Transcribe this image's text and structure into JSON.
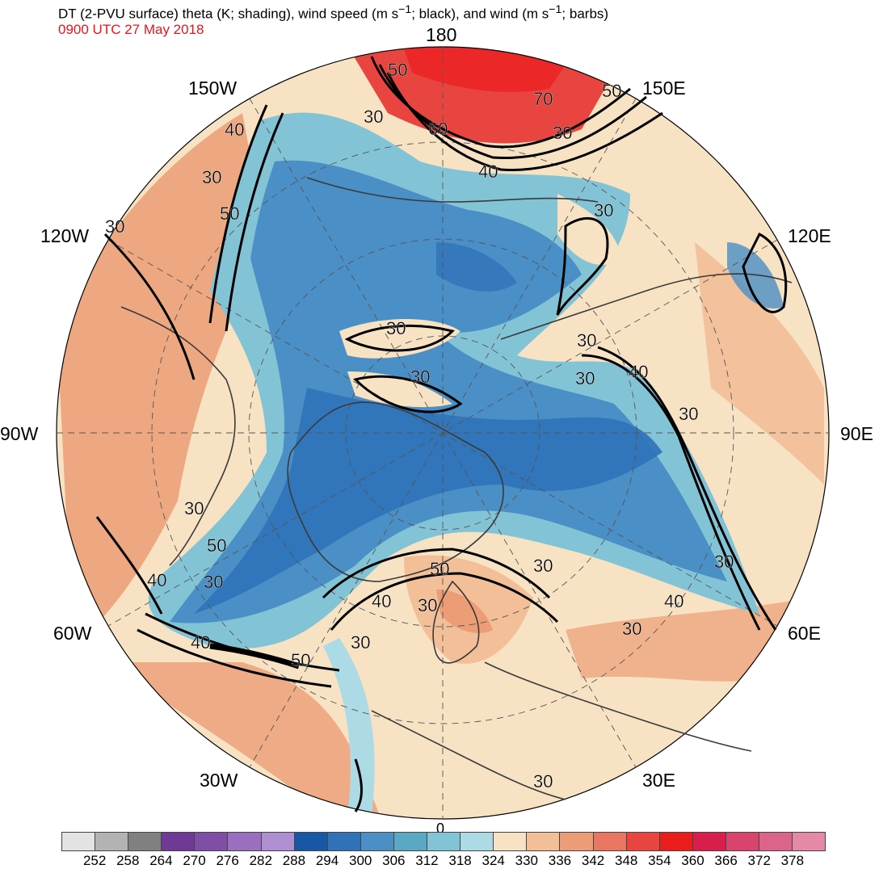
{
  "title_line1": "DT (2-PVU surface) theta (K; shading), wind speed (m s",
  "title_sup1": "−1",
  "title_line2": "; black), and wind (m s",
  "title_sup2": "−1",
  "title_line3": "; barbs)",
  "valid_time": "0900 UTC 27 May 2018",
  "longitude_labels": {
    "n180": "180",
    "w150": "150W",
    "e150": "150E",
    "w120": "120W",
    "e120": "120E",
    "w90": "90W",
    "e90": "90E",
    "w60": "60W",
    "e60": "60E",
    "w30": "30W",
    "e30": "30E",
    "s0": "0"
  },
  "contour_labels": [
    "50",
    "30",
    "60",
    "70",
    "50",
    "30",
    "40",
    "40",
    "30",
    "50",
    "30",
    "30",
    "30",
    "30",
    "30",
    "40",
    "30",
    "30",
    "30",
    "50",
    "40",
    "30",
    "50",
    "40",
    "30",
    "30",
    "40",
    "50",
    "40",
    "30",
    "30",
    "30",
    "30"
  ],
  "colorbar": {
    "colors": [
      "#e3e3e3",
      "#b3b3b3",
      "#808080",
      "#6e3a96",
      "#7f4fa8",
      "#9a6fc0",
      "#ae8fd2",
      "#1658a5",
      "#2f72b8",
      "#4a8fc6",
      "#5aa8c4",
      "#83c3d6",
      "#acdbe6",
      "#f7e2c3",
      "#f2bf98",
      "#ec9d76",
      "#e87660",
      "#e94540",
      "#eb1c1c",
      "#d81e4a",
      "#d8446e",
      "#dc6489",
      "#e48aa7"
    ],
    "labels": [
      "252",
      "258",
      "264",
      "270",
      "276",
      "282",
      "288",
      "294",
      "300",
      "306",
      "312",
      "318",
      "324",
      "330",
      "336",
      "342",
      "348",
      "354",
      "360",
      "366",
      "372",
      "378"
    ]
  }
}
